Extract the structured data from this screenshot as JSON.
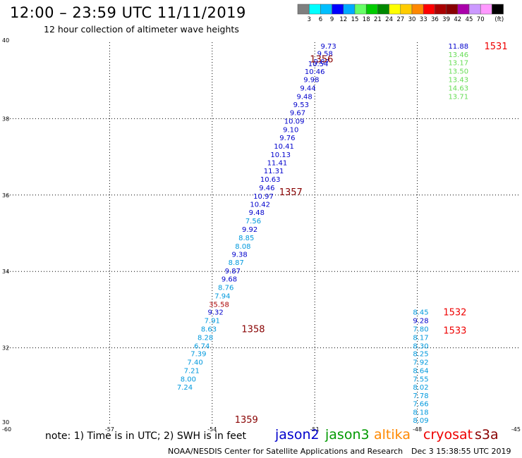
{
  "header": {
    "title": "12:00 – 23:59 UTC 11/11/2019",
    "subtitle": "12 hour collection of altimeter wave heights"
  },
  "footer": {
    "note": "note: 1) Time is in UTC; 2) SWH is in feet",
    "credit": "NOAA/NESDIS Center for Satellite Applications and Research",
    "timestamp": "Dec  3 15:38:55 UTC 2019"
  },
  "missions": [
    {
      "name": "jason2",
      "color": "#0000cc"
    },
    {
      "name": "jason3",
      "color": "#009900"
    },
    {
      "name": "altika",
      "color": "#ff8800"
    },
    {
      "name": "cryosat",
      "color": "#ee0000"
    },
    {
      "name": "s3a",
      "color": "#880000"
    }
  ],
  "chart_data": {
    "type": "scatter",
    "title": "12:00 – 23:59 UTC 11/11/2019",
    "subtitle": "12 hour collection of altimeter wave heights",
    "xlim": [
      -60,
      -45
    ],
    "ylim": [
      30,
      40
    ],
    "x_ticks": [
      "-60",
      "-57",
      "-54",
      "-51",
      "-48",
      "-45"
    ],
    "y_ticks": [
      "30",
      "32",
      "34",
      "36",
      "38",
      "40"
    ],
    "grid": true,
    "colorbar": {
      "unit": "(ft)",
      "labels": [
        "3",
        "6",
        "9",
        "12",
        "15",
        "18",
        "21",
        "24",
        "27",
        "30",
        "33",
        "36",
        "39",
        "42",
        "45",
        "70"
      ],
      "colors": [
        "#7f7f7f",
        "#00ffff",
        "#00bfff",
        "#0000ff",
        "#00aaff",
        "#66ff66",
        "#00cc00",
        "#008800",
        "#ffff00",
        "#ffcc00",
        "#ff8800",
        "#ff0000",
        "#aa0000",
        "#880000",
        "#aa00aa",
        "#cc99ff",
        "#ff99ff",
        "#000000"
      ]
    },
    "tracks": [
      {
        "mission": "jason2",
        "time_label": "1356",
        "time_color": "#880000",
        "time_lon": -50.8,
        "time_lat": 39.57,
        "points": [
          {
            "lon": -50.6,
            "lat": 39.91,
            "v": "9.73",
            "c": "#0000cc"
          },
          {
            "lon": -50.7,
            "lat": 39.71,
            "v": "9.58",
            "c": "#0000cc"
          },
          {
            "lon": -50.8,
            "lat": 39.5,
            "v": "9.87",
            "c": "#0000cc"
          },
          {
            "lon": -50.9,
            "lat": 39.45,
            "v": "10.54",
            "c": "#0000cc"
          },
          {
            "lon": -51.0,
            "lat": 39.24,
            "v": "10.46",
            "c": "#0000cc"
          },
          {
            "lon": -51.1,
            "lat": 39.03,
            "v": "9.98",
            "c": "#0000cc"
          },
          {
            "lon": -51.2,
            "lat": 38.81,
            "v": "9.44",
            "c": "#0000cc"
          },
          {
            "lon": -51.3,
            "lat": 38.59,
            "v": "9.48",
            "c": "#0000cc"
          },
          {
            "lon": -51.4,
            "lat": 38.38,
            "v": "9.53",
            "c": "#0000cc"
          },
          {
            "lon": -51.5,
            "lat": 38.16,
            "v": "9.67",
            "c": "#0000cc"
          },
          {
            "lon": -51.6,
            "lat": 37.94,
            "v": "10.09",
            "c": "#0000cc"
          },
          {
            "lon": -51.7,
            "lat": 37.72,
            "v": "9.10",
            "c": "#0000cc"
          },
          {
            "lon": -51.8,
            "lat": 37.51,
            "v": "9.76",
            "c": "#0000cc"
          },
          {
            "lon": -51.9,
            "lat": 37.29,
            "v": "10.41",
            "c": "#0000cc"
          },
          {
            "lon": -52.0,
            "lat": 37.07,
            "v": "10.13",
            "c": "#0000cc"
          },
          {
            "lon": -52.1,
            "lat": 36.85,
            "v": "11.41",
            "c": "#0000cc"
          },
          {
            "lon": -52.2,
            "lat": 36.64,
            "v": "11.31",
            "c": "#0000cc"
          }
        ]
      },
      {
        "mission": "jason2",
        "time_label": "1357",
        "time_color": "#880000",
        "time_lon": -51.7,
        "time_lat": 36.09,
        "points": [
          {
            "lon": -52.3,
            "lat": 36.42,
            "v": "10.63",
            "c": "#0000cc"
          },
          {
            "lon": -52.4,
            "lat": 36.2,
            "v": "9.46",
            "c": "#0000cc"
          },
          {
            "lon": -52.5,
            "lat": 35.98,
            "v": "10.97",
            "c": "#0000cc"
          },
          {
            "lon": -52.6,
            "lat": 35.77,
            "v": "10.42",
            "c": "#0000cc"
          },
          {
            "lon": -52.7,
            "lat": 35.55,
            "v": "9.48",
            "c": "#0000cc"
          },
          {
            "lon": -52.8,
            "lat": 35.33,
            "v": "7.56",
            "c": "#0099dd"
          },
          {
            "lon": -52.9,
            "lat": 35.11,
            "v": "9.92",
            "c": "#0000cc"
          },
          {
            "lon": -53.0,
            "lat": 34.89,
            "v": "8.85",
            "c": "#0099dd"
          },
          {
            "lon": -53.1,
            "lat": 34.67,
            "v": "8.08",
            "c": "#0099dd"
          },
          {
            "lon": -53.2,
            "lat": 34.46,
            "v": "9.38",
            "c": "#0000cc"
          },
          {
            "lon": -53.3,
            "lat": 34.24,
            "v": "8.87",
            "c": "#0099dd"
          },
          {
            "lon": -53.4,
            "lat": 34.02,
            "v": "9.87",
            "c": "#0000cc"
          },
          {
            "lon": -53.5,
            "lat": 33.81,
            "v": "9.68",
            "c": "#0000cc"
          },
          {
            "lon": -53.6,
            "lat": 33.59,
            "v": "8.76",
            "c": "#0099dd"
          },
          {
            "lon": -53.7,
            "lat": 33.37,
            "v": "7.94",
            "c": "#0099dd"
          },
          {
            "lon": -53.8,
            "lat": 33.15,
            "v": "35.58",
            "c": "#aa0000"
          },
          {
            "lon": -53.9,
            "lat": 32.94,
            "v": "9.32",
            "c": "#0000cc"
          },
          {
            "lon": -54.0,
            "lat": 32.72,
            "v": "7.91",
            "c": "#0099dd"
          }
        ]
      },
      {
        "mission": "jason2",
        "time_label": "1358",
        "time_color": "#880000",
        "time_lon": -52.8,
        "time_lat": 32.5,
        "points": [
          {
            "lon": -54.1,
            "lat": 32.5,
            "v": "8.63",
            "c": "#0099dd"
          },
          {
            "lon": -54.2,
            "lat": 32.28,
            "v": "8.28",
            "c": "#0099dd"
          },
          {
            "lon": -54.3,
            "lat": 32.06,
            "v": "6.74",
            "c": "#0099dd"
          },
          {
            "lon": -54.4,
            "lat": 31.85,
            "v": "7.39",
            "c": "#0099dd"
          },
          {
            "lon": -54.5,
            "lat": 31.63,
            "v": "7.40",
            "c": "#0099dd"
          },
          {
            "lon": -54.6,
            "lat": 31.41,
            "v": "7.21",
            "c": "#0099dd"
          },
          {
            "lon": -54.7,
            "lat": 31.19,
            "v": "8.00",
            "c": "#0099dd"
          },
          {
            "lon": -54.8,
            "lat": 30.98,
            "v": "7.24",
            "c": "#0099dd"
          }
        ]
      },
      {
        "mission": "jason2",
        "time_label": "1359",
        "time_color": "#880000",
        "time_lon": -53.0,
        "time_lat": 30.13,
        "points": []
      },
      {
        "mission": "cryosat",
        "time_label": "1531",
        "time_color": "#ee0000",
        "time_lon": -45.7,
        "time_lat": 39.91,
        "points": [
          {
            "lon": -46.8,
            "lat": 39.91,
            "v": "11.88",
            "c": "#0000cc"
          },
          {
            "lon": -46.8,
            "lat": 39.69,
            "v": "13.46",
            "c": "#66dd55"
          },
          {
            "lon": -46.8,
            "lat": 39.47,
            "v": "13.17",
            "c": "#66dd55"
          },
          {
            "lon": -46.8,
            "lat": 39.25,
            "v": "13.50",
            "c": "#66dd55"
          },
          {
            "lon": -46.8,
            "lat": 39.03,
            "v": "13.43",
            "c": "#66dd55"
          },
          {
            "lon": -46.8,
            "lat": 38.81,
            "v": "14.63",
            "c": "#66dd55"
          },
          {
            "lon": -46.8,
            "lat": 38.59,
            "v": "13.71",
            "c": "#66dd55"
          }
        ]
      },
      {
        "mission": "cryosat",
        "time_label": "1532",
        "time_color": "#ee0000",
        "time_lon": -46.9,
        "time_lat": 32.94,
        "points": [
          {
            "lon": -47.9,
            "lat": 32.94,
            "v": "8.45",
            "c": "#0099dd"
          },
          {
            "lon": -47.9,
            "lat": 32.72,
            "v": "9.28",
            "c": "#0000cc"
          },
          {
            "lon": -47.9,
            "lat": 32.5,
            "v": "7.80",
            "c": "#0099dd"
          },
          {
            "lon": -47.9,
            "lat": 32.28,
            "v": "8.17",
            "c": "#0099dd"
          },
          {
            "lon": -47.9,
            "lat": 32.06,
            "v": "8.30",
            "c": "#0099dd"
          },
          {
            "lon": -47.9,
            "lat": 31.85,
            "v": "8.25",
            "c": "#0099dd"
          },
          {
            "lon": -47.9,
            "lat": 31.63,
            "v": "7.92",
            "c": "#0099dd"
          },
          {
            "lon": -47.9,
            "lat": 31.41,
            "v": "8.64",
            "c": "#0099dd"
          },
          {
            "lon": -47.9,
            "lat": 31.19,
            "v": "7.55",
            "c": "#0099dd"
          },
          {
            "lon": -47.9,
            "lat": 30.98,
            "v": "8.02",
            "c": "#0099dd"
          },
          {
            "lon": -47.9,
            "lat": 30.76,
            "v": "7.78",
            "c": "#0099dd"
          },
          {
            "lon": -47.9,
            "lat": 30.54,
            "v": "7.66",
            "c": "#0099dd"
          },
          {
            "lon": -47.9,
            "lat": 30.32,
            "v": "8.18",
            "c": "#0099dd"
          },
          {
            "lon": -47.9,
            "lat": 30.11,
            "v": "8.09",
            "c": "#0099dd"
          }
        ]
      },
      {
        "mission": "cryosat",
        "time_label": "1533",
        "time_color": "#ee0000",
        "time_lon": -46.9,
        "time_lat": 32.46,
        "points": []
      }
    ]
  }
}
